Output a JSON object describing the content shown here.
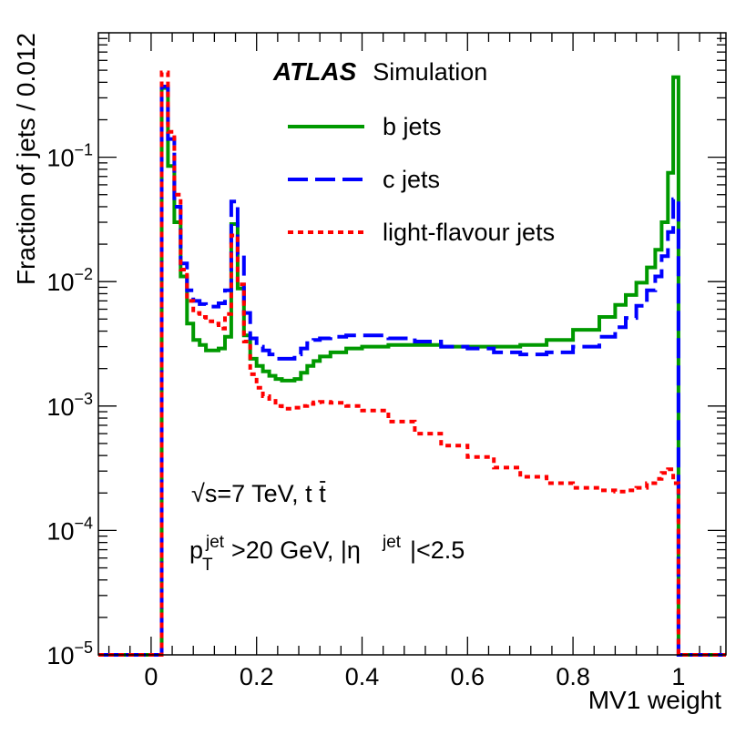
{
  "chart_data": {
    "type": "line",
    "title": "",
    "xlabel": "MV1 weight",
    "ylabel": "Fraction of jets / 0.012",
    "xlim": [
      -0.1,
      1.09
    ],
    "ylim": [
      1e-05,
      1
    ],
    "yscale": "log",
    "grid": false,
    "x_ticks": [
      {
        "value": 0,
        "label": "0"
      },
      {
        "value": 0.2,
        "label": "0.2"
      },
      {
        "value": 0.4,
        "label": "0.4"
      },
      {
        "value": 0.6,
        "label": "0.6"
      },
      {
        "value": 0.8,
        "label": "0.8"
      },
      {
        "value": 1,
        "label": "1"
      }
    ],
    "y_ticks": [
      {
        "value": 0.1,
        "base": "10",
        "exp": "−1"
      },
      {
        "value": 0.01,
        "base": "10",
        "exp": "−2"
      },
      {
        "value": 0.001,
        "base": "10",
        "exp": "−3"
      },
      {
        "value": 0.0001,
        "base": "10",
        "exp": "−4"
      },
      {
        "value": 1e-05,
        "base": "10",
        "exp": "−5"
      }
    ],
    "annotations": {
      "experiment": "ATLAS",
      "label": "Simulation",
      "energy_prefix": "√s=7 TeV, t",
      "energy_tbar": "t̄",
      "cuts_p": "p",
      "cuts_T": "T",
      "cuts_jet": "jet",
      "cuts_middle": ">20 GeV, |η",
      "cuts_end": "|<2.5"
    },
    "legend_position": "top-center",
    "series": [
      {
        "name": "b jets",
        "color": "#009900",
        "style": "solid",
        "points": [
          [
            -0.1,
            1e-05
          ],
          [
            0.02,
            1e-05
          ],
          [
            0.02,
            0.36
          ],
          [
            0.032,
            0.085
          ],
          [
            0.044,
            0.03
          ],
          [
            0.056,
            0.011
          ],
          [
            0.068,
            0.0046
          ],
          [
            0.08,
            0.0034
          ],
          [
            0.092,
            0.0031
          ],
          [
            0.104,
            0.0028
          ],
          [
            0.116,
            0.0028
          ],
          [
            0.128,
            0.0029
          ],
          [
            0.14,
            0.0036
          ],
          [
            0.152,
            0.029
          ],
          [
            0.164,
            0.0088
          ],
          [
            0.176,
            0.0037
          ],
          [
            0.188,
            0.0024
          ],
          [
            0.2,
            0.0021
          ],
          [
            0.212,
            0.0019
          ],
          [
            0.224,
            0.00175
          ],
          [
            0.236,
            0.00165
          ],
          [
            0.248,
            0.0016
          ],
          [
            0.26,
            0.0016
          ],
          [
            0.272,
            0.00165
          ],
          [
            0.284,
            0.00185
          ],
          [
            0.296,
            0.0021
          ],
          [
            0.308,
            0.0023
          ],
          [
            0.32,
            0.0025
          ],
          [
            0.34,
            0.0027
          ],
          [
            0.37,
            0.0029
          ],
          [
            0.4,
            0.003
          ],
          [
            0.45,
            0.0031
          ],
          [
            0.5,
            0.0031
          ],
          [
            0.55,
            0.003
          ],
          [
            0.6,
            0.003
          ],
          [
            0.65,
            0.003
          ],
          [
            0.7,
            0.0031
          ],
          [
            0.75,
            0.0034
          ],
          [
            0.8,
            0.0041
          ],
          [
            0.85,
            0.0052
          ],
          [
            0.88,
            0.0065
          ],
          [
            0.9,
            0.0078
          ],
          [
            0.92,
            0.0098
          ],
          [
            0.94,
            0.013
          ],
          [
            0.956,
            0.018
          ],
          [
            0.968,
            0.03
          ],
          [
            0.98,
            0.075
          ],
          [
            0.99,
            0.44
          ],
          [
            1.0,
            1e-05
          ],
          [
            1.09,
            1e-05
          ]
        ]
      },
      {
        "name": "c jets",
        "color": "#0000ff",
        "style": "long-dash",
        "points": [
          [
            -0.1,
            1e-05
          ],
          [
            0.02,
            1e-05
          ],
          [
            0.02,
            0.37
          ],
          [
            0.032,
            0.14
          ],
          [
            0.044,
            0.04
          ],
          [
            0.056,
            0.014
          ],
          [
            0.068,
            0.0085
          ],
          [
            0.08,
            0.007
          ],
          [
            0.092,
            0.0066
          ],
          [
            0.104,
            0.0063
          ],
          [
            0.116,
            0.0063
          ],
          [
            0.128,
            0.0067
          ],
          [
            0.14,
            0.0085
          ],
          [
            0.152,
            0.044
          ],
          [
            0.164,
            0.0165
          ],
          [
            0.176,
            0.0056
          ],
          [
            0.188,
            0.0035
          ],
          [
            0.2,
            0.003
          ],
          [
            0.212,
            0.0028
          ],
          [
            0.224,
            0.0026
          ],
          [
            0.236,
            0.0024
          ],
          [
            0.248,
            0.0024
          ],
          [
            0.26,
            0.0024
          ],
          [
            0.272,
            0.0026
          ],
          [
            0.284,
            0.0029
          ],
          [
            0.296,
            0.0032
          ],
          [
            0.308,
            0.0034
          ],
          [
            0.32,
            0.0035
          ],
          [
            0.34,
            0.0036
          ],
          [
            0.37,
            0.0037
          ],
          [
            0.4,
            0.0037
          ],
          [
            0.45,
            0.0035
          ],
          [
            0.5,
            0.0033
          ],
          [
            0.55,
            0.003
          ],
          [
            0.6,
            0.0029
          ],
          [
            0.65,
            0.0027
          ],
          [
            0.7,
            0.0026
          ],
          [
            0.75,
            0.0027
          ],
          [
            0.8,
            0.003
          ],
          [
            0.85,
            0.0036
          ],
          [
            0.88,
            0.0043
          ],
          [
            0.9,
            0.0051
          ],
          [
            0.92,
            0.0064
          ],
          [
            0.94,
            0.0085
          ],
          [
            0.956,
            0.011
          ],
          [
            0.968,
            0.016
          ],
          [
            0.98,
            0.025
          ],
          [
            0.99,
            0.046
          ],
          [
            1.0,
            1e-05
          ],
          [
            1.09,
            1e-05
          ]
        ]
      },
      {
        "name": "light-flavour jets",
        "color": "#ff0000",
        "style": "short-dash",
        "points": [
          [
            -0.1,
            1e-05
          ],
          [
            0.02,
            1e-05
          ],
          [
            0.02,
            0.48
          ],
          [
            0.032,
            0.16
          ],
          [
            0.044,
            0.05
          ],
          [
            0.056,
            0.0125
          ],
          [
            0.068,
            0.007
          ],
          [
            0.08,
            0.0056
          ],
          [
            0.092,
            0.0052
          ],
          [
            0.104,
            0.0048
          ],
          [
            0.116,
            0.0046
          ],
          [
            0.128,
            0.0042
          ],
          [
            0.14,
            0.0055
          ],
          [
            0.152,
            0.0235
          ],
          [
            0.164,
            0.0095
          ],
          [
            0.176,
            0.0033
          ],
          [
            0.188,
            0.0018
          ],
          [
            0.2,
            0.0014
          ],
          [
            0.212,
            0.0012
          ],
          [
            0.224,
            0.0011
          ],
          [
            0.236,
            0.001
          ],
          [
            0.248,
            0.00095
          ],
          [
            0.26,
            0.00095
          ],
          [
            0.272,
            0.00097
          ],
          [
            0.284,
            0.001
          ],
          [
            0.296,
            0.00104
          ],
          [
            0.308,
            0.00107
          ],
          [
            0.32,
            0.00108
          ],
          [
            0.34,
            0.00106
          ],
          [
            0.37,
            0.001
          ],
          [
            0.4,
            0.00092
          ],
          [
            0.45,
            0.00075
          ],
          [
            0.5,
            0.0006
          ],
          [
            0.55,
            0.00048
          ],
          [
            0.6,
            0.00039
          ],
          [
            0.65,
            0.00032
          ],
          [
            0.7,
            0.00027
          ],
          [
            0.75,
            0.00024
          ],
          [
            0.8,
            0.00022
          ],
          [
            0.85,
            0.00021
          ],
          [
            0.88,
            0.000205
          ],
          [
            0.9,
            0.00021
          ],
          [
            0.92,
            0.00022
          ],
          [
            0.94,
            0.00024
          ],
          [
            0.956,
            0.00026
          ],
          [
            0.968,
            0.00029
          ],
          [
            0.98,
            0.00031
          ],
          [
            0.99,
            0.00024
          ],
          [
            1.0,
            1e-05
          ],
          [
            1.09,
            1e-05
          ]
        ]
      }
    ]
  }
}
